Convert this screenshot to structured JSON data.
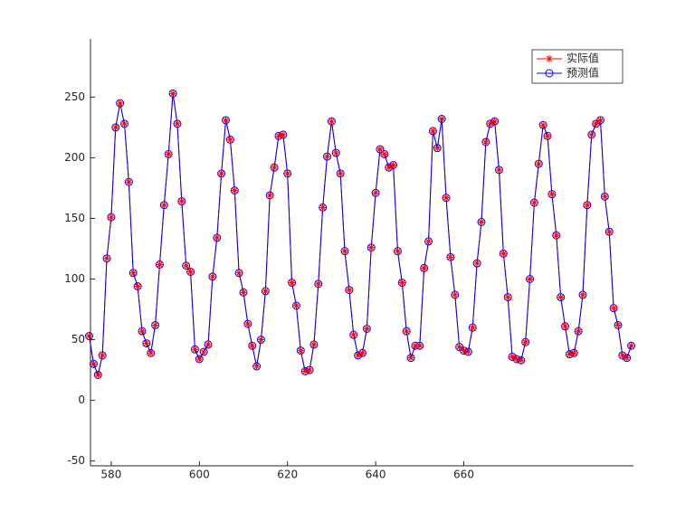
{
  "chart_data": {
    "type": "line",
    "x": [
      575,
      576,
      577,
      578,
      579,
      580,
      581,
      582,
      583,
      584,
      585,
      586,
      587,
      588,
      589,
      590,
      591,
      592,
      593,
      594,
      595,
      596,
      597,
      598,
      599,
      600,
      601,
      602,
      603,
      604,
      605,
      606,
      607,
      608,
      609,
      610,
      611,
      612,
      613,
      614,
      615,
      616,
      617,
      618,
      619,
      620,
      621,
      622,
      623,
      624,
      625,
      626,
      627,
      628,
      629,
      630,
      631,
      632,
      633,
      634,
      635,
      636,
      637,
      638,
      639,
      640,
      641,
      642,
      643,
      644,
      645,
      646,
      647,
      648,
      649,
      650,
      651,
      652,
      653,
      654,
      655,
      656,
      657,
      658,
      659,
      660,
      661,
      662,
      663,
      664,
      665,
      666,
      667,
      668,
      669,
      670,
      671,
      672,
      673,
      674,
      675,
      676,
      677,
      678,
      679,
      680,
      681,
      682,
      683,
      684,
      685,
      686,
      687,
      688,
      689,
      690,
      691,
      692,
      693,
      694,
      695,
      696,
      697,
      698
    ],
    "series": [
      {
        "name": "实际值",
        "color": "#ff0000",
        "marker": "star",
        "values": [
          53,
          30,
          21,
          37,
          117,
          151,
          225,
          245,
          228,
          180,
          105,
          94,
          57,
          47,
          39,
          62,
          112,
          161,
          203,
          253,
          228,
          164,
          111,
          106,
          42,
          34,
          40,
          46,
          102,
          134,
          187,
          231,
          215,
          173,
          105,
          89,
          63,
          45,
          28,
          50,
          90,
          169,
          192,
          218,
          219,
          187,
          97,
          78,
          41,
          24,
          25,
          46,
          96,
          159,
          201,
          230,
          204,
          187,
          123,
          91,
          54,
          37,
          39,
          59,
          126,
          171,
          207,
          203,
          192,
          194,
          123,
          97,
          57,
          35,
          45,
          45,
          109,
          131,
          222,
          208,
          232,
          167,
          118,
          87,
          44,
          41,
          40,
          60,
          113,
          147,
          213,
          228,
          230,
          190,
          121,
          85,
          36,
          34,
          33,
          48,
          100,
          163,
          195,
          227,
          218,
          170,
          136,
          85,
          61,
          38,
          39,
          57,
          87,
          161,
          219,
          228,
          231,
          168,
          139,
          76,
          62,
          37,
          35,
          45
        ]
      },
      {
        "name": "预测值",
        "color": "#0000ff",
        "marker": "circle",
        "values": [
          53,
          30,
          21,
          37,
          117,
          151,
          225,
          245,
          228,
          180,
          105,
          94,
          57,
          47,
          39,
          62,
          112,
          161,
          203,
          253,
          228,
          164,
          111,
          106,
          42,
          34,
          40,
          46,
          102,
          134,
          187,
          231,
          215,
          173,
          105,
          89,
          63,
          45,
          28,
          50,
          90,
          169,
          192,
          218,
          219,
          187,
          97,
          78,
          41,
          24,
          25,
          46,
          96,
          159,
          201,
          230,
          204,
          187,
          123,
          91,
          54,
          37,
          39,
          59,
          126,
          171,
          207,
          203,
          192,
          194,
          123,
          97,
          57,
          35,
          45,
          45,
          109,
          131,
          222,
          208,
          232,
          167,
          118,
          87,
          44,
          41,
          40,
          60,
          113,
          147,
          213,
          228,
          230,
          190,
          121,
          85,
          36,
          34,
          33,
          48,
          100,
          163,
          195,
          227,
          218,
          170,
          136,
          85,
          61,
          38,
          39,
          57,
          87,
          161,
          219,
          228,
          231,
          168,
          139,
          76,
          62,
          37,
          35,
          45
        ]
      }
    ],
    "xlim": [
      575.3,
      698.5
    ],
    "xticks": [
      580,
      600,
      620,
      640,
      660
    ],
    "ylim": [
      -54,
      298
    ],
    "yticks": [
      -50,
      0,
      50,
      100,
      150,
      200,
      250
    ],
    "legend": "upper-right"
  }
}
